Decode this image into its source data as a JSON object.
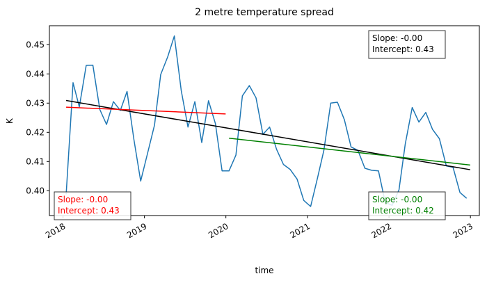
{
  "chart_data": {
    "type": "line",
    "title": "2 metre temperature spread",
    "xlabel": "time",
    "ylabel": "K",
    "xlim": [
      "2017-11-01",
      "2023-02-10"
    ],
    "ylim": [
      0.3915,
      0.4565
    ],
    "x_ticks": [
      {
        "date": "2018-01-01",
        "label": "2018"
      },
      {
        "date": "2019-01-01",
        "label": "2019"
      },
      {
        "date": "2020-01-01",
        "label": "2020"
      },
      {
        "date": "2021-01-01",
        "label": "2021"
      },
      {
        "date": "2022-01-01",
        "label": "2022"
      },
      {
        "date": "2023-01-01",
        "label": "2023"
      }
    ],
    "y_ticks": [
      {
        "value": 0.4,
        "label": "0.40"
      },
      {
        "value": 0.41,
        "label": "0.41"
      },
      {
        "value": 0.42,
        "label": "0.42"
      },
      {
        "value": 0.43,
        "label": "0.43"
      },
      {
        "value": 0.44,
        "label": "0.44"
      },
      {
        "value": 0.45,
        "label": "0.45"
      }
    ],
    "grid": false,
    "series": [
      {
        "color": "#1f77b4",
        "points": [
          [
            "2018-01-15",
            0.3988
          ],
          [
            "2018-02-15",
            0.437
          ],
          [
            "2018-03-15",
            0.4287
          ],
          [
            "2018-04-15",
            0.4429
          ],
          [
            "2018-05-15",
            0.443
          ],
          [
            "2018-06-15",
            0.4278
          ],
          [
            "2018-07-15",
            0.4227
          ],
          [
            "2018-08-15",
            0.4305
          ],
          [
            "2018-09-15",
            0.4275
          ],
          [
            "2018-10-15",
            0.434
          ],
          [
            "2018-11-15",
            0.4175
          ],
          [
            "2018-12-15",
            0.4033
          ],
          [
            "2019-01-15",
            0.4128
          ],
          [
            "2019-02-15",
            0.4225
          ],
          [
            "2019-03-15",
            0.4398
          ],
          [
            "2019-04-15",
            0.4458
          ],
          [
            "2019-05-15",
            0.453
          ],
          [
            "2019-06-15",
            0.4343
          ],
          [
            "2019-07-15",
            0.4218
          ],
          [
            "2019-08-15",
            0.4305
          ],
          [
            "2019-09-15",
            0.4165
          ],
          [
            "2019-10-15",
            0.4308
          ],
          [
            "2019-11-15",
            0.423
          ],
          [
            "2019-12-15",
            0.4068
          ],
          [
            "2020-01-15",
            0.4068
          ],
          [
            "2020-02-15",
            0.4122
          ],
          [
            "2020-03-15",
            0.4325
          ],
          [
            "2020-04-15",
            0.436
          ],
          [
            "2020-05-15",
            0.4318
          ],
          [
            "2020-06-15",
            0.4193
          ],
          [
            "2020-07-15",
            0.4218
          ],
          [
            "2020-08-15",
            0.4142
          ],
          [
            "2020-09-15",
            0.409
          ],
          [
            "2020-10-15",
            0.4073
          ],
          [
            "2020-11-15",
            0.404
          ],
          [
            "2020-12-15",
            0.3967
          ],
          [
            "2021-01-15",
            0.3946
          ],
          [
            "2021-02-15",
            0.4045
          ],
          [
            "2021-03-15",
            0.4138
          ],
          [
            "2021-04-15",
            0.43
          ],
          [
            "2021-05-15",
            0.4303
          ],
          [
            "2021-06-15",
            0.4243
          ],
          [
            "2021-07-15",
            0.415
          ],
          [
            "2021-08-15",
            0.4138
          ],
          [
            "2021-09-15",
            0.4077
          ],
          [
            "2021-10-15",
            0.407
          ],
          [
            "2021-11-15",
            0.4068
          ],
          [
            "2021-12-15",
            0.396
          ],
          [
            "2022-01-15",
            0.395
          ],
          [
            "2022-02-15",
            0.4003
          ],
          [
            "2022-03-15",
            0.416
          ],
          [
            "2022-04-15",
            0.4285
          ],
          [
            "2022-05-15",
            0.4235
          ],
          [
            "2022-06-15",
            0.4268
          ],
          [
            "2022-07-15",
            0.421
          ],
          [
            "2022-08-15",
            0.4178
          ],
          [
            "2022-09-15",
            0.4085
          ],
          [
            "2022-10-15",
            0.408
          ],
          [
            "2022-11-15",
            0.3994
          ],
          [
            "2022-12-15",
            0.3974
          ]
        ]
      }
    ],
    "trend_lines": [
      {
        "color": "#000000",
        "start": [
          "2018-01-15",
          0.4309
        ],
        "end": [
          "2022-12-31",
          0.4072
        ]
      },
      {
        "color": "#ff0000",
        "start": [
          "2018-01-15",
          0.4286
        ],
        "end": [
          "2019-12-31",
          0.4263
        ]
      },
      {
        "color": "#008000",
        "start": [
          "2020-01-15",
          0.418
        ],
        "end": [
          "2022-12-31",
          0.4088
        ]
      }
    ],
    "annotations": [
      {
        "lines": [
          "Slope: -0.00",
          "Intercept: 0.43"
        ],
        "color": "#000000",
        "placement": "top-right"
      },
      {
        "lines": [
          "Slope: -0.00",
          "Intercept: 0.43"
        ],
        "color": "#ff0000",
        "placement": "bottom-left"
      },
      {
        "lines": [
          "Slope: -0.00",
          "Intercept: 0.42"
        ],
        "color": "#008000",
        "placement": "bottom-right"
      }
    ]
  }
}
